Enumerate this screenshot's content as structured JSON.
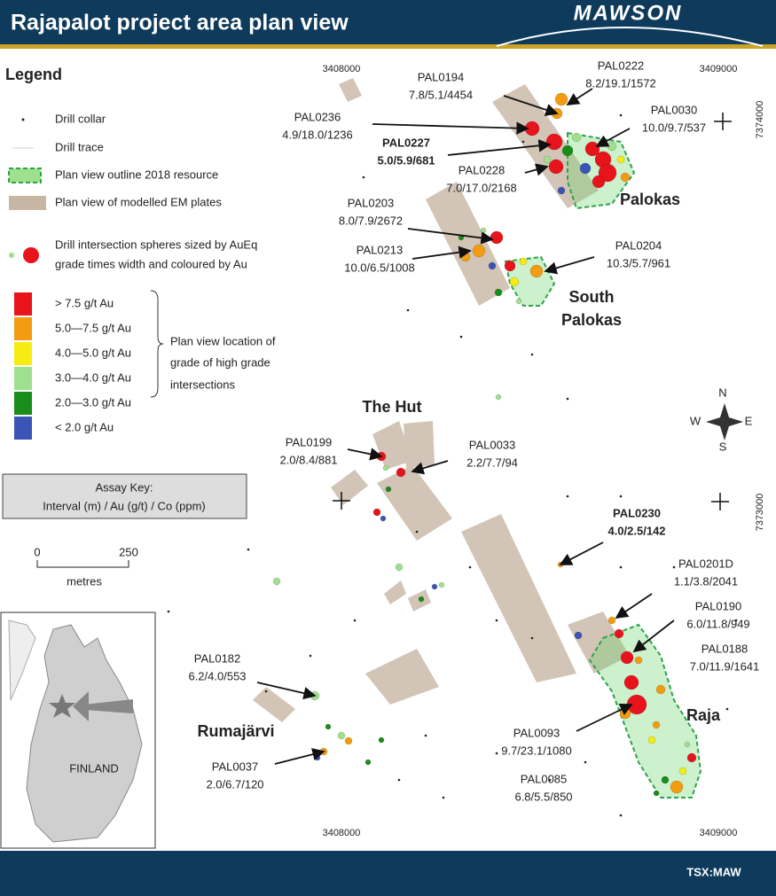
{
  "header": {
    "title": "Rajapalot project area plan view",
    "logo": "MAWSON"
  },
  "legend": {
    "title": "Legend",
    "items": [
      "Drill collar",
      "Drill trace",
      "Plan view outline 2018 resource",
      "Plan view of modelled EM plates"
    ],
    "sphere_lines": [
      "Drill intersection spheres sized by AuEq",
      "grade times width and coloured by Au"
    ],
    "grades": [
      {
        "label": "> 7.5 g/t Au",
        "color": "#e8141b"
      },
      {
        "label": "5.0—7.5 g/t Au",
        "color": "#f39c12"
      },
      {
        "label": "4.0—5.0 g/t Au",
        "color": "#f5ec12"
      },
      {
        "label": "3.0—4.0 g/t Au",
        "color": "#9fe08f"
      },
      {
        "label": "2.0—3.0 g/t Au",
        "color": "#1a8c1a"
      },
      {
        "label": "< 2.0 g/t Au",
        "color": "#3a55b5"
      }
    ],
    "grade_note": [
      "Plan view location of",
      "grade of high grade",
      "intersections"
    ]
  },
  "assay_key": [
    "Assay Key:",
    "Interval (m) / Au (g/t) / Co (ppm)"
  ],
  "scale": {
    "start": "0",
    "end": "250",
    "unit": "metres"
  },
  "coordinates": {
    "top": [
      "3408000",
      "3409000"
    ],
    "bottom": [
      "3408000",
      "3409000"
    ],
    "right": [
      "7374000",
      "7373000"
    ]
  },
  "compass": {
    "n": "N",
    "e": "E",
    "s": "S",
    "w": "W"
  },
  "areas": [
    "Palokas",
    "South",
    "Palokas",
    "The Hut",
    "Raja",
    "Rumajärvi"
  ],
  "drill_labels": [
    {
      "id": "PAL0194",
      "values": "7.8/5.1/4454"
    },
    {
      "id": "PAL0222",
      "values": "8.2/19.1/1572"
    },
    {
      "id": "PAL0236",
      "values": "4.9/18.0/1236"
    },
    {
      "id": "PAL0227",
      "values": "5.0/5.9/681",
      "bold": true
    },
    {
      "id": "PAL0030",
      "values": "10.0/9.7/537"
    },
    {
      "id": "PAL0228",
      "values": "7.0/17.0/2168"
    },
    {
      "id": "PAL0203",
      "values": "8.0/7.9/2672"
    },
    {
      "id": "PAL0213",
      "values": "10.0/6.5/1008"
    },
    {
      "id": "PAL0204",
      "values": "10.3/5.7/961"
    },
    {
      "id": "PAL0199",
      "values": "2.0/8.4/881"
    },
    {
      "id": "PAL0033",
      "values": "2.2/7.7/94"
    },
    {
      "id": "PAL0230",
      "values": "4.0/2.5/142",
      "bold": true
    },
    {
      "id": "PAL0201D",
      "values": "1.1/3.8/2041"
    },
    {
      "id": "PAL0190",
      "values": "6.0/11.8/949"
    },
    {
      "id": "PAL0188",
      "values": "7.0/11.9/1641"
    },
    {
      "id": "PAL0182",
      "values": "6.2/4.0/553"
    },
    {
      "id": "PAL0093",
      "values": "9.7/23.1/1080"
    },
    {
      "id": "PAL0037",
      "values": "2.0/6.7/120"
    },
    {
      "id": "PAL0085",
      "values": "6.8/5.5/850"
    }
  ],
  "inset": {
    "label": "FINLAND"
  },
  "footer": {
    "ticker": "TSX:MAW"
  }
}
